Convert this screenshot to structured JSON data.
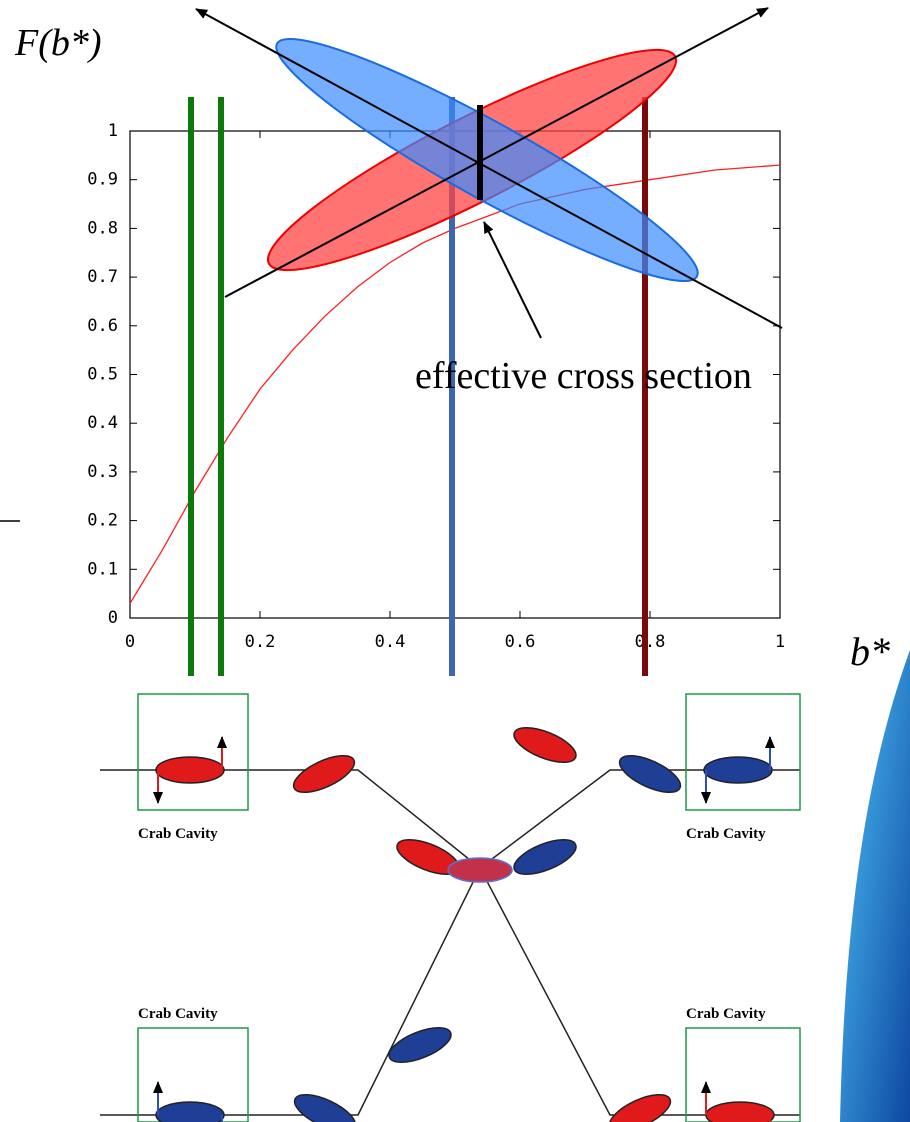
{
  "chart_data": {
    "type": "line",
    "y_label": "F(b*)",
    "x_label": "b*",
    "annotation": "effective cross section",
    "x": [
      0,
      0.05,
      0.1,
      0.15,
      0.2,
      0.25,
      0.3,
      0.35,
      0.4,
      0.45,
      0.5,
      0.6,
      0.7,
      0.8,
      0.9,
      1.0
    ],
    "values": [
      0.03,
      0.14,
      0.26,
      0.37,
      0.47,
      0.55,
      0.62,
      0.68,
      0.73,
      0.77,
      0.8,
      0.85,
      0.88,
      0.9,
      0.92,
      0.93
    ],
    "color": "#ff2020",
    "xlim": [
      0,
      1
    ],
    "ylim": [
      0,
      1
    ],
    "xticks": [
      0,
      0.2,
      0.4,
      0.6,
      0.8,
      1
    ],
    "yticks": [
      0,
      0.1,
      0.2,
      0.3,
      0.4,
      0.5,
      0.6,
      0.7,
      0.8,
      0.9,
      1
    ]
  },
  "diagram": {
    "labels": [
      "Crab Cavity",
      "Crab Cavity",
      "Crab Cavity",
      "Crab Cavity"
    ]
  }
}
